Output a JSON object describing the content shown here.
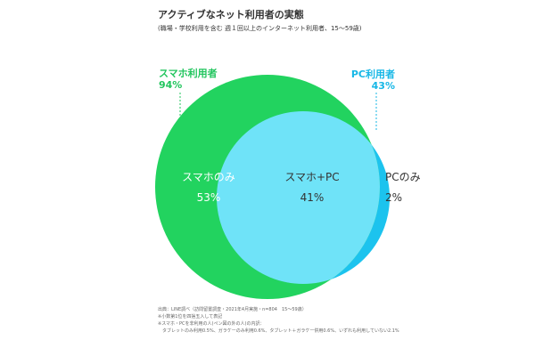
{
  "colors": {
    "smartphone": "#22d35f",
    "pc": "#1cc3ee",
    "overlap": "#6fe3f8",
    "label_smartphone": "#22c55e",
    "label_pc": "#17b7e6"
  },
  "header": {
    "title": "アクティブなネット利用者の実態",
    "subtitle": "(職場・学校利用を含む 週１回以上のインターネット利用者、15～59歳)"
  },
  "legend": {
    "smartphone_name": "スマホ利用者",
    "smartphone_value": "94%",
    "pc_name": "PC利用者",
    "pc_value": "43%"
  },
  "chart_data": {
    "type": "venn",
    "sets": [
      {
        "name": "スマホ利用者",
        "value": 94,
        "unit": "%"
      },
      {
        "name": "PC利用者",
        "value": 43,
        "unit": "%"
      }
    ],
    "regions": [
      {
        "label": "スマホのみ",
        "value": 53,
        "text": "53%"
      },
      {
        "label": "スマホ+PC",
        "value": 41,
        "text": "41%"
      },
      {
        "label": "PCのみ",
        "value": 2,
        "text": "2%"
      }
    ]
  },
  "notes": {
    "line1": "出典：LINE調べ（訪問留置調査・2021年4月実施・n=804　15～59歳）",
    "line2": "※小数第1位を四捨五入して表記",
    "line3": "※スマホ・PCを非利用の人(ペン図の外の人)の内訳：",
    "line4": "　タブレットのみ利用0.5%、ガラケーのみ利用0.6%、タブレット＋ガラケー併用0.6%、いずれも利用していない2.1%"
  }
}
